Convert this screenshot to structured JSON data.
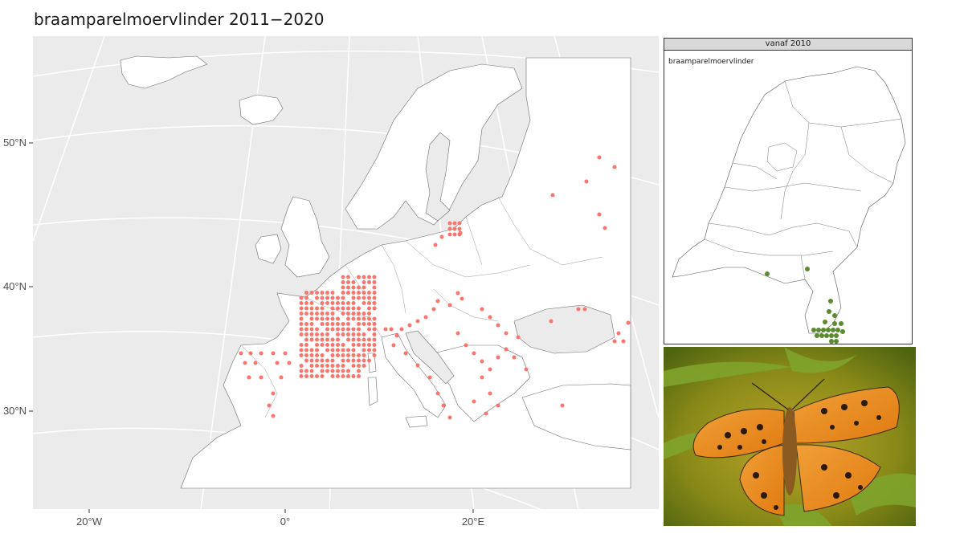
{
  "title": "braamparelmoervlinder 2011−2020",
  "main_map": {
    "lat_labels": [
      "50°N",
      "40°N",
      "30°N"
    ],
    "lon_labels": [
      "20°W",
      "0°",
      "20°E"
    ],
    "panel_background": "#ebebeb",
    "land_color": "#ffffff",
    "point_color": "#f8766d"
  },
  "inset": {
    "strip_label": "vanaf 2010",
    "subtitle": "braamparelmoervlinder",
    "point_color": "#5b8a2f"
  },
  "photo": {
    "subject": "butterfly-photo"
  }
}
